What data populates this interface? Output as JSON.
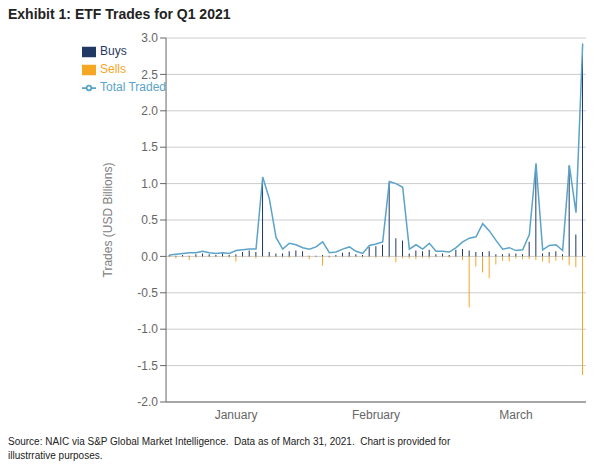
{
  "chart_data": {
    "type": "bar",
    "title": "Exhibit 1: ETF Trades for Q1 2021",
    "ylabel": "Trades (USD Billions)",
    "annotations": [
      "Source: NAIC via S&P Global Market Intelligence.  Data as of March 31, 2021.  Chart is provided for\nillustrrative purposes."
    ],
    "categories": [
      null,
      null,
      null,
      null,
      null,
      null,
      null,
      null,
      null,
      null,
      "January",
      null,
      null,
      null,
      null,
      null,
      null,
      null,
      null,
      null,
      null,
      null,
      null,
      null,
      null,
      null,
      null,
      null,
      null,
      null,
      null,
      "February",
      null,
      null,
      null,
      null,
      null,
      null,
      null,
      null,
      null,
      null,
      null,
      null,
      null,
      null,
      null,
      null,
      null,
      null,
      null,
      null,
      "March",
      null,
      null,
      null,
      null,
      null,
      null,
      null,
      null,
      null,
      null
    ],
    "series": [
      {
        "name": "Buys",
        "type": "bar",
        "color": "#1f3864",
        "values": [
          0.02,
          0.01,
          0.02,
          0.01,
          0.03,
          0.04,
          0.03,
          0.02,
          0.04,
          0.02,
          0.03,
          0.06,
          0.08,
          0.06,
          1.08,
          0.06,
          0.04,
          0.04,
          0.07,
          0.08,
          0.07,
          0.01,
          0.01,
          0.02,
          0.01,
          0.02,
          0.05,
          0.06,
          0.03,
          0.02,
          0.13,
          0.14,
          0.16,
          1.02,
          0.25,
          0.22,
          0.04,
          0.08,
          0.07,
          0.09,
          0.03,
          0.04,
          0.02,
          0.09,
          0.1,
          0.08,
          0.06,
          0.06,
          0.07,
          0.03,
          0.03,
          0.04,
          0.04,
          0.03,
          0.2,
          1.25,
          0.04,
          0.06,
          0.07,
          0.03,
          1.25,
          0.3,
          2.92
        ]
      },
      {
        "name": "Sells",
        "type": "bar",
        "color": "#f5a623",
        "values": [
          -0.01,
          -0.03,
          -0.01,
          -0.05,
          -0.02,
          -0.01,
          -0.01,
          -0.01,
          -0.01,
          -0.02,
          -0.07,
          -0.01,
          -0.01,
          -0.03,
          -0.01,
          -0.01,
          -0.01,
          -0.02,
          -0.02,
          -0.01,
          -0.01,
          -0.04,
          -0.01,
          -0.13,
          -0.02,
          -0.01,
          -0.01,
          -0.01,
          -0.01,
          -0.02,
          -0.01,
          -0.02,
          -0.01,
          -0.02,
          -0.08,
          -0.03,
          -0.03,
          -0.04,
          -0.02,
          -0.03,
          -0.01,
          -0.01,
          -0.02,
          -0.01,
          -0.05,
          -0.7,
          -0.14,
          -0.22,
          -0.3,
          -0.11,
          -0.06,
          -0.07,
          -0.03,
          -0.04,
          -0.04,
          -0.05,
          -0.07,
          -0.09,
          -0.06,
          -0.05,
          -0.12,
          -0.15,
          -1.63
        ]
      },
      {
        "name": "Total Traded",
        "type": "line",
        "color": "#5ba3c9",
        "values": [
          0.02,
          0.03,
          0.04,
          0.05,
          0.05,
          0.07,
          0.05,
          0.04,
          0.05,
          0.04,
          0.08,
          0.09,
          0.1,
          0.1,
          1.09,
          0.79,
          0.26,
          0.1,
          0.18,
          0.16,
          0.12,
          0.1,
          0.13,
          0.2,
          0.05,
          0.06,
          0.1,
          0.13,
          0.07,
          0.04,
          0.15,
          0.17,
          0.2,
          1.03,
          1.0,
          0.95,
          0.1,
          0.16,
          0.1,
          0.18,
          0.07,
          0.07,
          0.06,
          0.12,
          0.2,
          0.25,
          0.27,
          0.45,
          0.35,
          0.22,
          0.1,
          0.12,
          0.08,
          0.09,
          0.3,
          1.28,
          0.09,
          0.15,
          0.16,
          0.08,
          1.25,
          0.6,
          2.92
        ]
      }
    ],
    "ylim": [
      -2.0,
      3.0
    ],
    "yticks": [
      {
        "value": -2.0,
        "label": "-2.0"
      },
      -1.5,
      {
        "value": -1.0,
        "label": "-1.0"
      },
      -0.5,
      {
        "value": 0.0,
        "label": "0.0"
      },
      0.5,
      {
        "value": 1.0,
        "label": "1.0"
      },
      1.5,
      {
        "value": 2.0,
        "label": "2.0"
      },
      2.5,
      {
        "value": 3.0,
        "label": "3.0"
      }
    ],
    "stacked": true,
    "grid": true,
    "legend": "upper left"
  }
}
